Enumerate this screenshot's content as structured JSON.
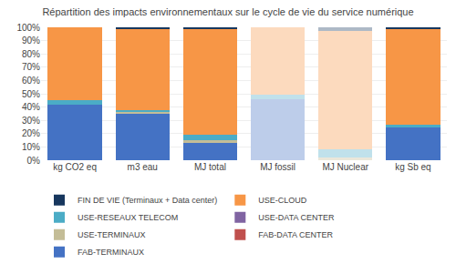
{
  "chart_data": {
    "type": "bar",
    "title": "Répartition des impacts environnementaux sur le cycle de vie du service numérique",
    "stacked": true,
    "grid": true,
    "legend": "bottom",
    "categories": [
      "kg CO2 eq",
      "m3 eau",
      "MJ total",
      "MJ fossil",
      "MJ Nuclear",
      "kg Sb eq"
    ],
    "series": [
      {
        "name": "FAB-TERMINAUX",
        "values": [
          0.42,
          0.35,
          0.13,
          0.46,
          0.0,
          0.25
        ],
        "colors": [
          "#4472c4",
          "#4472c4",
          "#4472c4",
          "#bdcdea",
          "#bdcdea",
          "#4472c4"
        ]
      },
      {
        "name": "FAB-DATA CENTER",
        "values": [
          0.0,
          0.0,
          0.0,
          0.0,
          0.0,
          0.0
        ],
        "colors": [
          "#c0504d",
          "#c0504d",
          "#c0504d",
          "#e8c1c0",
          "#e8c1c0",
          "#c0504d"
        ]
      },
      {
        "name": "USE-TERMINAUX",
        "values": [
          0.0,
          0.01,
          0.02,
          0.0,
          0.02,
          0.0
        ],
        "colors": [
          "#c4bd97",
          "#c4bd97",
          "#c4bd97",
          "#eae7da",
          "#eae7da",
          "#c4bd97"
        ]
      },
      {
        "name": "USE-DATA CENTER",
        "values": [
          0.0,
          0.0,
          0.0,
          0.0,
          0.0,
          0.0
        ],
        "colors": [
          "#8064a2",
          "#8064a2",
          "#8064a2",
          "#d2c8de",
          "#d2c8de",
          "#8064a2"
        ]
      },
      {
        "name": "USE-RESEAUX TELECOM",
        "values": [
          0.03,
          0.02,
          0.04,
          0.03,
          0.06,
          0.02
        ],
        "colors": [
          "#4bacc6",
          "#4bacc6",
          "#4bacc6",
          "#c0e1eb",
          "#c0e1eb",
          "#4bacc6"
        ]
      },
      {
        "name": "USE-CLOUD",
        "values": [
          0.55,
          0.61,
          0.8,
          0.51,
          0.89,
          0.72
        ],
        "colors": [
          "#f79646",
          "#f79646",
          "#f79646",
          "#fcdabe",
          "#fcdabe",
          "#f79646"
        ]
      },
      {
        "name": "FIN DE VIE (Terminaux + Data center)",
        "values": [
          0.0,
          0.01,
          0.01,
          0.0,
          0.03,
          0.01
        ],
        "colors": [
          "#17375e",
          "#17375e",
          "#17375e",
          "#adb9c6",
          "#adb9c6",
          "#17375e"
        ]
      }
    ],
    "ylim": [
      0,
      1
    ],
    "yticks": [
      {
        "value": 0,
        "label": "0%"
      },
      {
        "value": 0.1,
        "label": "10%"
      },
      {
        "value": 0.2,
        "label": "20%"
      },
      {
        "value": 0.3,
        "label": "30%"
      },
      {
        "value": 0.4,
        "label": "40%"
      },
      {
        "value": 0.5,
        "label": "50%"
      },
      {
        "value": 0.6,
        "label": "60%"
      },
      {
        "value": 0.7,
        "label": "70%"
      },
      {
        "value": 0.8,
        "label": "80%"
      },
      {
        "value": 0.9,
        "label": "90%"
      },
      {
        "value": 1.0,
        "label": "100%"
      }
    ]
  }
}
